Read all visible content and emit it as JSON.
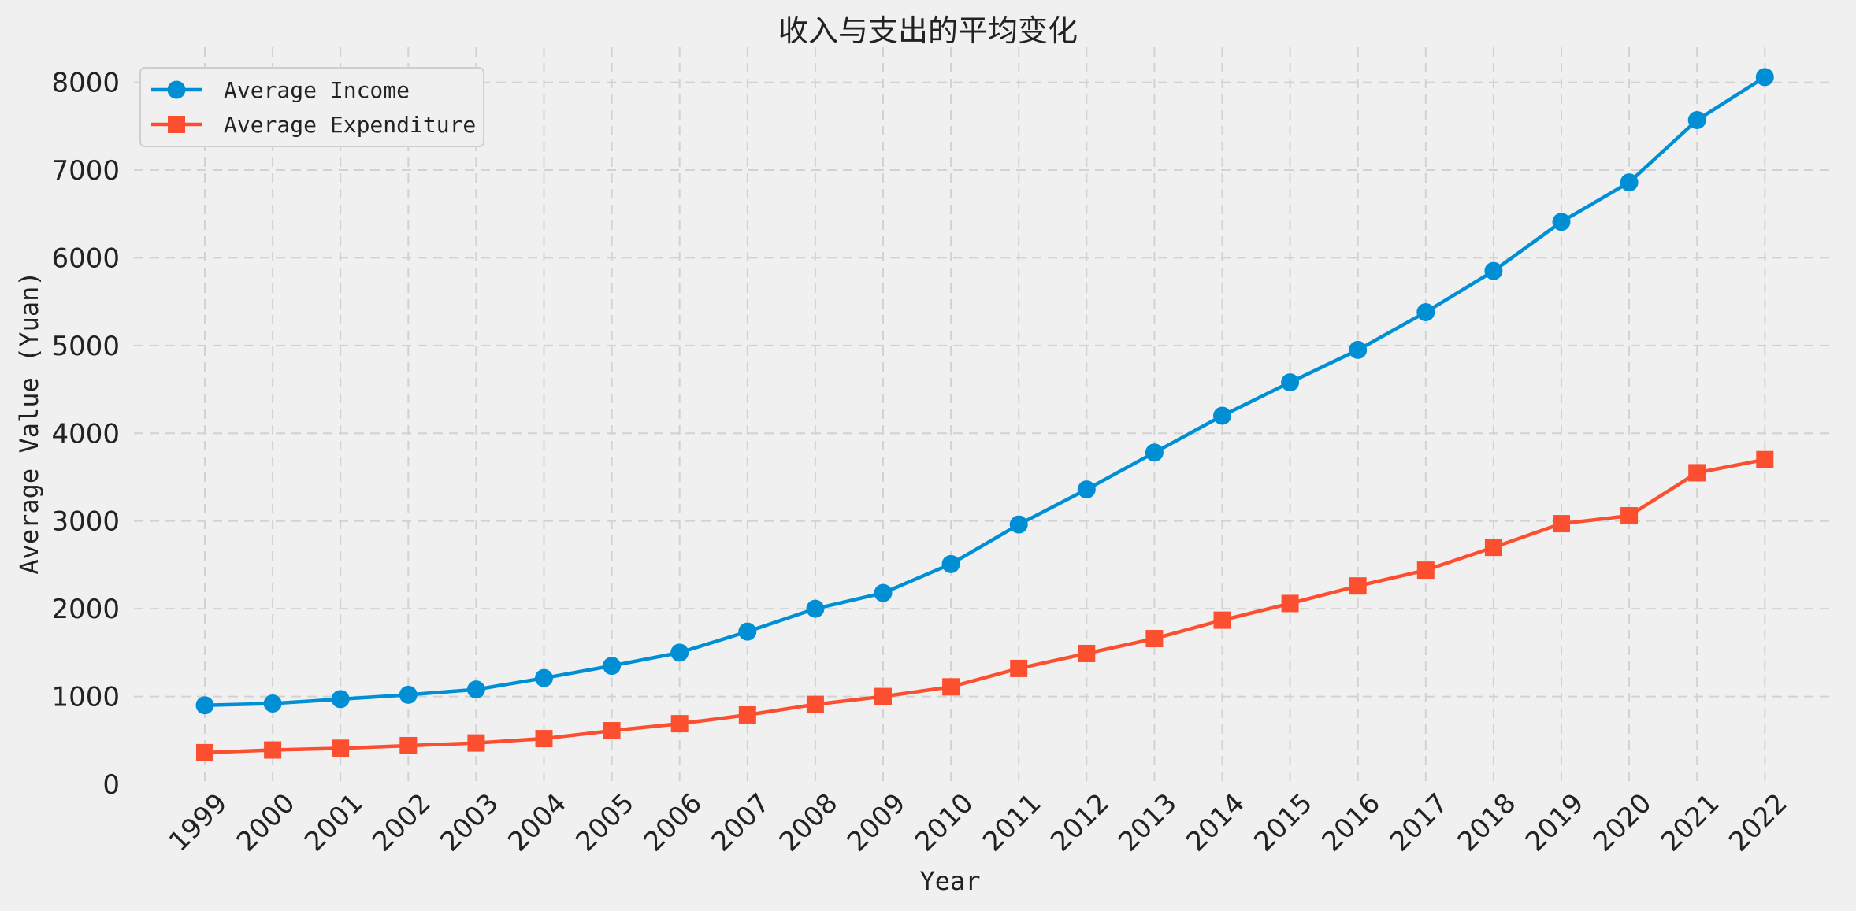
{
  "chart_data": {
    "type": "line",
    "title": "收入与支出的平均变化",
    "xlabel": "Year",
    "ylabel": "Average Value (Yuan)",
    "ylim": [
      0,
      8400
    ],
    "yticks": [
      0,
      1000,
      2000,
      3000,
      4000,
      5000,
      6000,
      7000,
      8000
    ],
    "grid": true,
    "legend_position": "top-left",
    "categories": [
      "1999",
      "2000",
      "2001",
      "2002",
      "2003",
      "2004",
      "2005",
      "2006",
      "2007",
      "2008",
      "2009",
      "2010",
      "2011",
      "2012",
      "2013",
      "2014",
      "2015",
      "2016",
      "2017",
      "2018",
      "2019",
      "2020",
      "2021",
      "2022"
    ],
    "series": [
      {
        "name": "Average Income",
        "color": "#008fd5",
        "marker": "circle",
        "values": [
          900,
          920,
          970,
          1020,
          1080,
          1210,
          1350,
          1500,
          1740,
          2000,
          2180,
          2510,
          2960,
          3360,
          3780,
          4200,
          4580,
          4950,
          5380,
          5850,
          6410,
          6860,
          7570,
          8060
        ]
      },
      {
        "name": "Average Expenditure",
        "color": "#fc4f30",
        "marker": "square",
        "values": [
          360,
          390,
          410,
          440,
          470,
          520,
          610,
          690,
          790,
          910,
          1000,
          1110,
          1320,
          1490,
          1660,
          1870,
          2060,
          2260,
          2440,
          2700,
          2970,
          3060,
          3550,
          3700
        ]
      }
    ]
  }
}
